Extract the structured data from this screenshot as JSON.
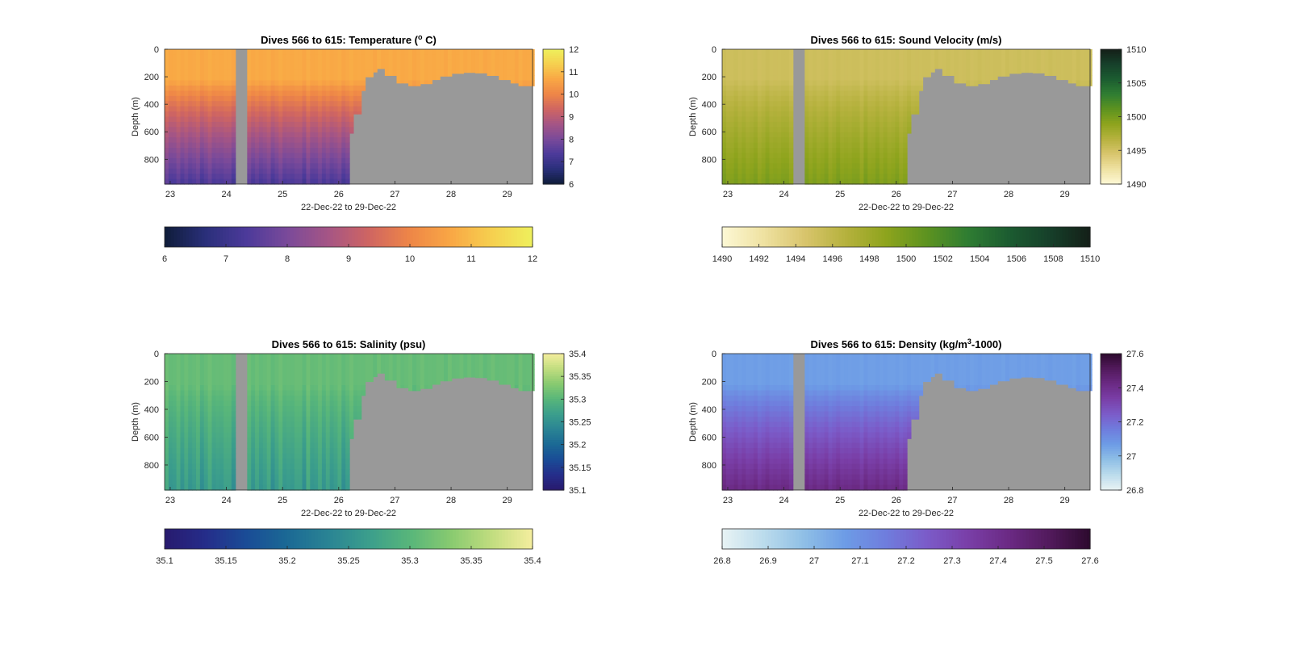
{
  "figure": {
    "background": "#ffffff",
    "nodata_color": "#999999",
    "axis_color": "#262626"
  },
  "chart_data": [
    {
      "type": "heatmap",
      "variable": "temperature",
      "title_prefix": "Dives 566 to 615: Temperature (",
      "title_sup": "o",
      "title_suffix": " C)",
      "ylabel": "Depth (m)",
      "xlabel": "22-Dec-22 to 29-Dec-22",
      "x_ticks": [
        "23",
        "24",
        "25",
        "26",
        "27",
        "28",
        "29"
      ],
      "y_ticks": [
        "0",
        "200",
        "400",
        "600",
        "800"
      ],
      "xlim_days": [
        22.9,
        29.45
      ],
      "ylim_m": [
        0,
        980
      ],
      "clim": [
        6,
        12
      ],
      "cbar_right_ticks": [
        "6",
        "7",
        "8",
        "9",
        "10",
        "11",
        "12"
      ],
      "cbar_bottom_ticks": [
        "6",
        "7",
        "8",
        "9",
        "10",
        "11",
        "12"
      ],
      "colormap": [
        "#0f1d3a",
        "#2a2f7a",
        "#4c3a9a",
        "#7a4a9a",
        "#a55585",
        "#cf6562",
        "#ee8647",
        "#f9a745",
        "#f6cf4f",
        "#eef05c"
      ],
      "surface_value": 10.7,
      "deep_value": 7.3,
      "col_jitter": [
        0.35,
        -0.2,
        0.1,
        0.45,
        -0.3,
        0.2,
        0.0,
        -0.15,
        0.3,
        -0.35,
        0.15,
        0.4,
        -0.1,
        0.25,
        -0.25,
        0.05,
        0.35,
        -0.3
      ],
      "gap_day": [
        24.22,
        24.36
      ],
      "data_end_day": 26.15
    },
    {
      "type": "heatmap",
      "variable": "sound_velocity",
      "title_prefix": "Dives 566 to 615: Sound Velocity (m/s)",
      "title_sup": "",
      "title_suffix": "",
      "ylabel": "Depth (m)",
      "xlabel": "22-Dec-22 to 29-Dec-22",
      "x_ticks": [
        "23",
        "24",
        "25",
        "26",
        "27",
        "28",
        "29"
      ],
      "y_ticks": [
        "0",
        "200",
        "400",
        "600",
        "800"
      ],
      "xlim_days": [
        22.9,
        29.45
      ],
      "ylim_m": [
        0,
        980
      ],
      "clim": [
        1490,
        1510
      ],
      "cbar_right_ticks": [
        "1490",
        "1495",
        "1500",
        "1505",
        "1510"
      ],
      "cbar_bottom_ticks": [
        "1490",
        "1492",
        "1494",
        "1496",
        "1498",
        "1500",
        "1502",
        "1504",
        "1506",
        "1508",
        "1510"
      ],
      "colormap": [
        "#fdf8d5",
        "#efe2a2",
        "#d9c56d",
        "#b6b23e",
        "#8ea41d",
        "#5d9320",
        "#2f7d32",
        "#1c5c31",
        "#16402a",
        "#141f18"
      ],
      "surface_value": 1495.2,
      "deep_value": 1499.5,
      "col_jitter": [
        0.8,
        -0.5,
        0.3,
        1.0,
        -0.7,
        0.4,
        0.0,
        -0.4,
        0.7,
        -0.8,
        0.3,
        0.9,
        -0.2,
        0.6,
        -0.6,
        0.1,
        0.8,
        -0.7
      ],
      "gap_day": [
        24.22,
        24.36
      ],
      "data_end_day": 26.15
    },
    {
      "type": "heatmap",
      "variable": "salinity",
      "title_prefix": "Dives 566 to 615: Salinity (psu)",
      "title_sup": "",
      "title_suffix": "",
      "ylabel": "Depth (m)",
      "xlabel": "22-Dec-22 to 29-Dec-22",
      "x_ticks": [
        "23",
        "24",
        "25",
        "26",
        "27",
        "28",
        "29"
      ],
      "y_ticks": [
        "0",
        "200",
        "400",
        "600",
        "800"
      ],
      "xlim_days": [
        22.9,
        29.45
      ],
      "ylim_m": [
        0,
        980
      ],
      "clim": [
        35.1,
        35.4
      ],
      "cbar_right_ticks": [
        "35.1",
        "35.15",
        "35.2",
        "35.25",
        "35.3",
        "35.35",
        "35.4"
      ],
      "cbar_bottom_ticks": [
        "35.1",
        "35.15",
        "35.2",
        "35.25",
        "35.3",
        "35.35",
        "35.4"
      ],
      "colormap": [
        "#281a6e",
        "#252d8a",
        "#1a4c96",
        "#1b6995",
        "#2a8494",
        "#3b9e8c",
        "#58b67a",
        "#88ca70",
        "#c1dd7f",
        "#f5ee9e"
      ],
      "surface_value": 35.31,
      "deep_value": 35.26,
      "col_jitter": [
        0.03,
        -0.02,
        0.01,
        0.035,
        -0.03,
        0.02,
        0.0,
        -0.015,
        0.025,
        -0.03,
        0.015,
        0.03,
        -0.01,
        0.02,
        -0.02,
        0.005,
        0.03,
        -0.025
      ],
      "gap_day": [
        24.22,
        24.36
      ],
      "data_end_day": 26.15
    },
    {
      "type": "heatmap",
      "variable": "density",
      "title_prefix": "Dives 566 to 615: Density (kg/m",
      "title_sup": "3",
      "title_suffix": "-1000)",
      "ylabel": "Depth (m)",
      "xlabel": "22-Dec-22 to 29-Dec-22",
      "x_ticks": [
        "23",
        "24",
        "25",
        "26",
        "27",
        "28",
        "29"
      ],
      "y_ticks": [
        "0",
        "200",
        "400",
        "600",
        "800"
      ],
      "xlim_days": [
        22.9,
        29.45
      ],
      "ylim_m": [
        0,
        980
      ],
      "clim": [
        26.8,
        27.6
      ],
      "cbar_right_ticks": [
        "26.8",
        "27",
        "27.2",
        "27.4",
        "27.6"
      ],
      "cbar_bottom_ticks": [
        "26.8",
        "26.9",
        "27",
        "27.1",
        "27.2",
        "27.3",
        "27.4",
        "27.5",
        "27.6"
      ],
      "colormap": [
        "#e8f3f4",
        "#bcdcec",
        "#8fbfe6",
        "#6d9ce6",
        "#6f7ddd",
        "#7b5cc9",
        "#7a3fa8",
        "#6b2a84",
        "#521a5c",
        "#2d0a2e"
      ],
      "surface_value": 27.06,
      "deep_value": 27.42,
      "col_jitter": [
        0.03,
        -0.02,
        0.015,
        0.04,
        -0.03,
        0.02,
        0.0,
        -0.02,
        0.03,
        -0.035,
        0.015,
        0.035,
        -0.01,
        0.025,
        -0.025,
        0.005,
        0.03,
        -0.03
      ],
      "gap_day": [
        24.22,
        24.36
      ],
      "data_end_day": 26.15
    }
  ],
  "mask_profile": {
    "days": [
      26.15,
      26.25,
      26.35,
      26.45,
      26.55,
      26.65,
      26.8,
      27.0,
      27.2,
      27.4,
      27.6,
      27.8,
      28.0,
      28.2,
      28.4,
      28.6,
      28.8,
      29.0,
      29.2,
      29.45
    ],
    "depth_m": [
      610,
      470,
      300,
      200,
      165,
      140,
      190,
      245,
      265,
      250,
      220,
      195,
      175,
      168,
      172,
      190,
      220,
      245,
      265,
      290
    ]
  }
}
